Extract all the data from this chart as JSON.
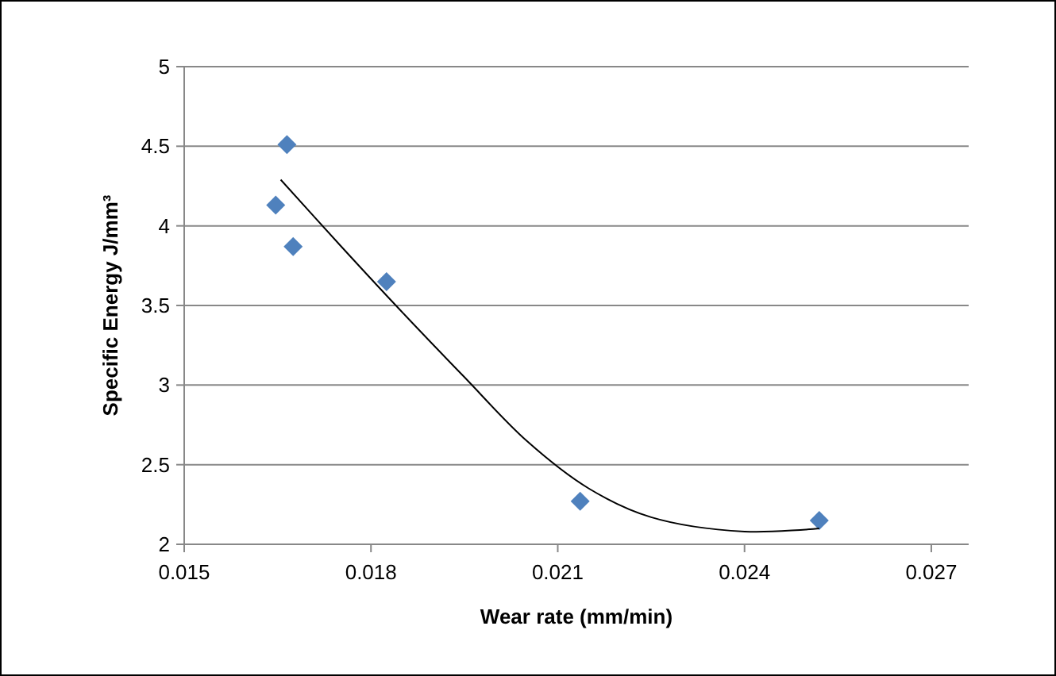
{
  "chart_data": {
    "type": "scatter",
    "xlabel": "Wear rate (mm/min)",
    "ylabel": "Specific Energy J/mm³",
    "xlim": [
      0.015,
      0.0276
    ],
    "xticks": [
      0.015,
      0.018,
      0.021,
      0.024,
      0.027
    ],
    "ylim": [
      2,
      5
    ],
    "yticks": [
      2,
      2.5,
      3,
      3.5,
      4,
      4.5,
      5
    ],
    "grid": "y",
    "series": [
      {
        "color": "#4f81bd",
        "marker": "diamond",
        "x": [
          0.01665,
          0.01647,
          0.01675,
          0.01825,
          0.02136,
          0.0252
        ],
        "values": [
          4.51,
          4.13,
          3.87,
          3.65,
          2.27,
          2.15
        ]
      },
      {
        "type": "line",
        "color": "#000000",
        "marker": "none",
        "line_style": "solid",
        "x": [
          0.01655,
          0.0175,
          0.0184,
          0.0195,
          0.0205,
          0.0215,
          0.0225,
          0.024,
          0.0252
        ],
        "values": [
          4.29,
          3.88,
          3.5,
          3.05,
          2.65,
          2.35,
          2.17,
          2.08,
          2.1
        ]
      }
    ]
  }
}
